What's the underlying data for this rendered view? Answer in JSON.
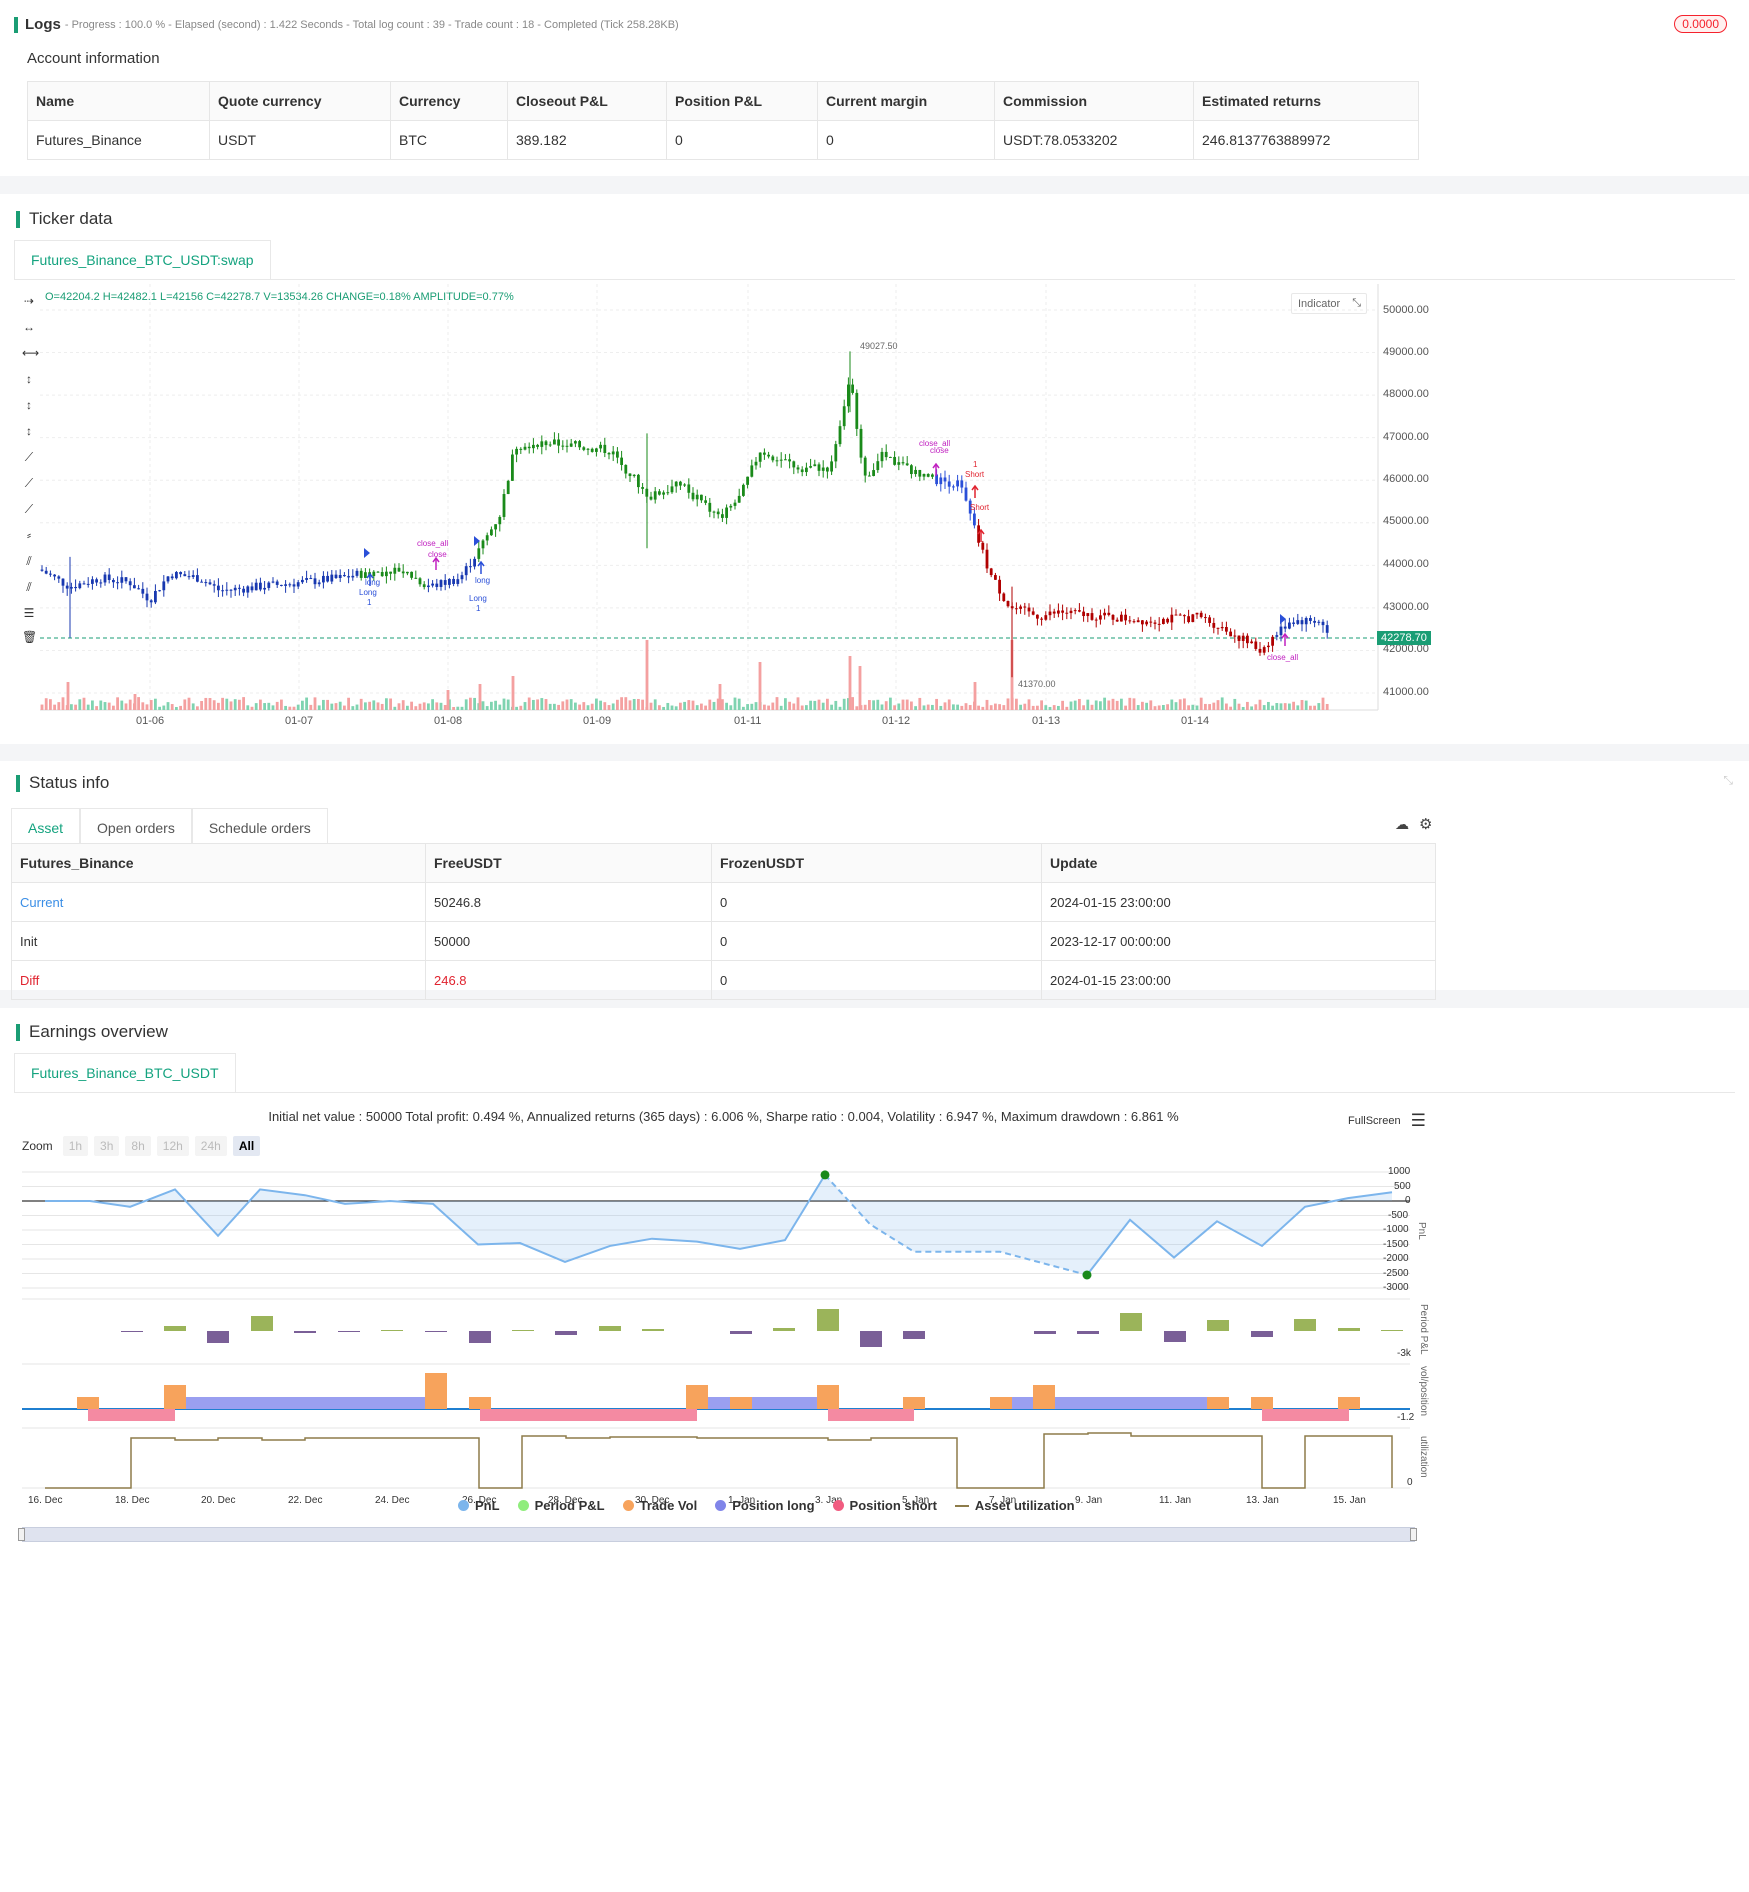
{
  "logs": {
    "title": "Logs",
    "progress": "- Progress : 100.0 % - Elapsed (second) : 1.422  Seconds - Total log count : 39 - Trade count : 18 - Completed (Tick 258.28KB)",
    "badge": "0.0000"
  },
  "account": {
    "title": "Account information",
    "headers": [
      "Name",
      "Quote currency",
      "Currency",
      "Closeout P&L",
      "Position P&L",
      "Current margin",
      "Commission",
      "Estimated returns"
    ],
    "row": [
      "Futures_Binance",
      "USDT",
      "BTC",
      "389.182",
      "0",
      "0",
      "USDT:78.0533202",
      "246.8137763889972"
    ]
  },
  "ticker": {
    "title": "Ticker data",
    "tab": "Futures_Binance_BTC_USDT:swap",
    "ohlc": "O=42204.2 H=42482.1 L=42156 C=42278.7 V=13534.26 CHANGE=0.18% AMPLITUDE=0.77%",
    "indicator_label": "Indicator",
    "current_price": "42278.70",
    "high_label": "49027.50",
    "low_label": "41370.00",
    "y_ticks": [
      "50000.00",
      "49000.00",
      "48000.00",
      "47000.00",
      "46000.00",
      "45000.00",
      "44000.00",
      "43000.00",
      "42000.00",
      "41000.00"
    ],
    "x_ticks": [
      "01-06",
      "01-07",
      "01-08",
      "01-09",
      "01-11",
      "01-12",
      "01-13",
      "01-14"
    ],
    "annotations": {
      "close_all_1": "close_all",
      "close_1": "close",
      "long_1": "long",
      "long_cap_1": "Long",
      "one_1": "1",
      "long_2": "long",
      "long_cap_2": "Long",
      "one_2": "1",
      "close_all_2": "close_all",
      "close_2": "close",
      "one_3": "1",
      "short_1": "Short",
      "short_2": "Short",
      "close_all_3": "close_all"
    }
  },
  "status": {
    "title": "Status info",
    "tabs": [
      "Asset",
      "Open orders",
      "Schedule orders"
    ],
    "headers": [
      "Futures_Binance",
      "FreeUSDT",
      "FrozenUSDT",
      "Update"
    ],
    "rows": [
      [
        "Current",
        "50246.8",
        "0",
        "2024-01-15 23:00:00"
      ],
      [
        "Init",
        "50000",
        "0",
        "2023-12-17 00:00:00"
      ],
      [
        "Diff",
        "246.8",
        "0",
        "2024-01-15 23:00:00"
      ]
    ]
  },
  "earnings": {
    "title": "Earnings overview",
    "tab": "Futures_Binance_BTC_USDT",
    "summary": "Initial net value : 50000 Total profit: 0.494 %, Annualized returns (365 days) : 6.006 %, Sharpe ratio : 0.004, Volatility : 6.947 %, Maximum drawdown : 6.861 %",
    "fullscreen": "FullScreen",
    "zoom_label": "Zoom",
    "zoom_buttons": [
      "1h",
      "3h",
      "8h",
      "12h",
      "24h",
      "All"
    ],
    "pnl_ticks": [
      "1000",
      "500",
      "0",
      "-500",
      "-1000",
      "-1500",
      "-2000",
      "-2500",
      "-3000"
    ],
    "axis_labels": {
      "pnl": "PnL",
      "period": "Period P&L",
      "vol": "vol/position",
      "util": "utilization"
    },
    "period_tick": "-3k",
    "vol_tick": "-1.2",
    "util_tick": "0",
    "x_ticks": [
      "16. Dec",
      "18. Dec",
      "20. Dec",
      "22. Dec",
      "24. Dec",
      "26. Dec",
      "28. Dec",
      "30. Dec",
      "1. Jan",
      "3. Jan",
      "5. Jan",
      "7. Jan",
      "9. Jan",
      "11. Jan",
      "13. Jan",
      "15. Jan"
    ],
    "legend": [
      {
        "name": "PnL",
        "color": "#7cb5ec"
      },
      {
        "name": "Period P&L",
        "color": "#90ed7d"
      },
      {
        "name": "Trade Vol",
        "color": "#f7a35c"
      },
      {
        "name": "Position long",
        "color": "#8085e9"
      },
      {
        "name": "Position short",
        "color": "#f15c80"
      },
      {
        "name": "Asset utilization",
        "color": "#8d7c4a"
      }
    ]
  }
}
